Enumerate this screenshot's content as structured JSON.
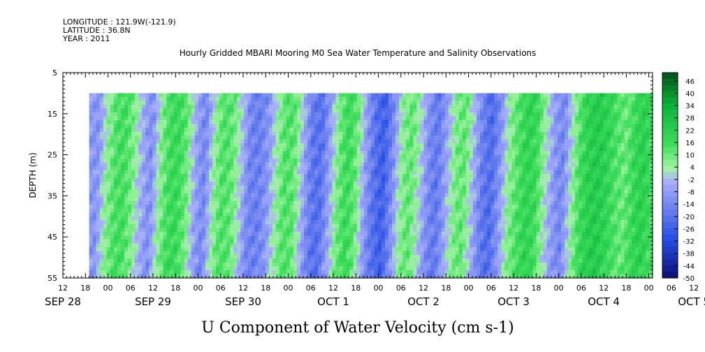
{
  "header": {
    "longitude": "LONGITUDE : 121.9W(-121.9)",
    "latitude": "LATITUDE : 36.8N",
    "year": "YEAR : 2011",
    "title": "Hourly Gridded MBARI Mooring M0 Sea Water Temperature and Salinity Observations"
  },
  "chart_data": {
    "type": "heatmap",
    "title": "Hourly Gridded MBARI Mooring M0 Sea Water Temperature and Salinity Observations",
    "xlabel": "",
    "ylabel": "DEPTH (m)",
    "bottom_label": "U Component of Water Velocity (cm s-1)",
    "x_hour_ticks": [
      "12",
      "18",
      "00",
      "06",
      "12",
      "18",
      "00",
      "06",
      "12",
      "18",
      "00",
      "06",
      "12",
      "18",
      "00",
      "06",
      "12",
      "18",
      "00",
      "06",
      "12",
      "18",
      "00",
      "06",
      "12",
      "18",
      "00",
      "06",
      "12"
    ],
    "x_day_labels": [
      "SEP 28",
      "SEP 29",
      "SEP 30",
      "OCT  1",
      "OCT  2",
      "OCT  3",
      "OCT  4",
      "OCT  5"
    ],
    "xlim_hours_from_sep28_00": [
      12,
      169
    ],
    "data_start_hours_from_sep28_00": 19,
    "y_ticks": [
      "5",
      "15",
      "25",
      "35",
      "45",
      "55"
    ],
    "ylim": [
      5,
      55
    ],
    "y_reversed": true,
    "data_depth_range": [
      10,
      55
    ],
    "colorbar_labels": [
      "46",
      "40",
      "34",
      "28",
      "22",
      "16",
      "10",
      "4",
      "-2",
      "-8",
      "-14",
      "-20",
      "-26",
      "-32",
      "-38",
      "-44",
      "-50"
    ],
    "colorbar_range": [
      -50,
      50
    ],
    "colorbar_step": 3,
    "column_means": [
      -8,
      -10,
      5,
      14,
      16,
      8,
      -4,
      -12,
      6,
      16,
      18,
      10,
      -6,
      -14,
      4,
      14,
      12,
      0,
      -14,
      -16,
      -10,
      4,
      14,
      12,
      -4,
      -18,
      -20,
      -6,
      10,
      18,
      10,
      -8,
      -20,
      -26,
      -12,
      6,
      12,
      2,
      -12,
      -18,
      -6,
      8,
      12,
      -2,
      -16,
      -22,
      -10,
      6,
      14,
      20,
      18,
      4,
      -8,
      -14,
      2,
      16,
      22,
      24,
      20,
      14,
      10,
      18,
      22,
      16
    ]
  }
}
